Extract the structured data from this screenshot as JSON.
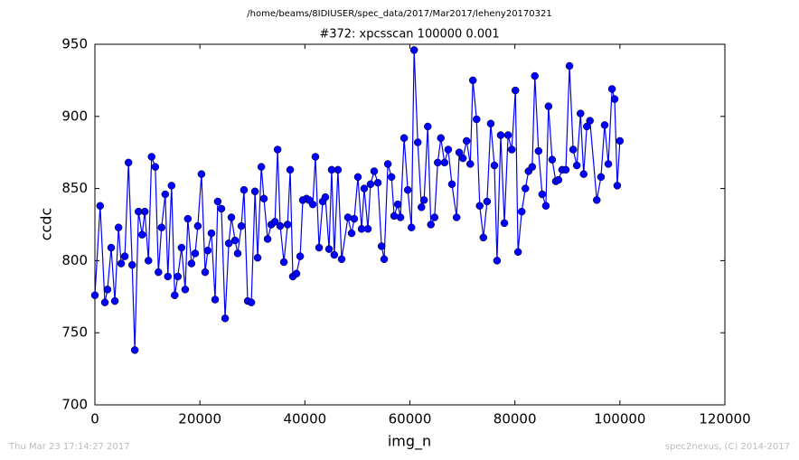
{
  "chart_data": {
    "type": "line",
    "suptitle": "/home/beams/8IDIUSER/spec_data/2017/Mar2017/leheny20170321",
    "title": "#372: xpcsscan 100000 0.001",
    "xlabel": "img_n",
    "ylabel": "ccdc",
    "timestamp": "Thu Mar 23 17:14:27 2017",
    "credit": "spec2nexus, (C) 2014-2017",
    "xlim": [
      0,
      120000
    ],
    "xticks": [
      0,
      20000,
      40000,
      60000,
      80000,
      100000,
      120000
    ],
    "ylim": [
      700,
      950
    ],
    "yticks": [
      700,
      750,
      800,
      850,
      900,
      950
    ],
    "grid": false,
    "series": [
      {
        "color": "#0000ff",
        "x": [
          0,
          1000,
          1900,
          2400,
          3100,
          3800,
          4500,
          5000,
          5700,
          6400,
          7100,
          7600,
          8300,
          9000,
          9500,
          10200,
          10800,
          11500,
          12100,
          12700,
          13400,
          13900,
          14600,
          15200,
          15800,
          16500,
          17200,
          17700,
          18400,
          19100,
          19600,
          20300,
          21000,
          21500,
          22200,
          22900,
          23400,
          24100,
          24800,
          25500,
          26000,
          26700,
          27200,
          27900,
          28400,
          29100,
          29800,
          30500,
          31000,
          31700,
          32200,
          32900,
          33600,
          34300,
          34800,
          35300,
          36000,
          36700,
          37200,
          37700,
          38400,
          39100,
          39600,
          40300,
          40800,
          41500,
          42000,
          42700,
          43400,
          43900,
          44600,
          45100,
          45600,
          46300,
          47000,
          48200,
          48900,
          49400,
          50100,
          50800,
          51300,
          52000,
          52500,
          53200,
          53900,
          54600,
          55100,
          55800,
          56500,
          57000,
          57700,
          58200,
          58900,
          59600,
          60300,
          60800,
          61500,
          62200,
          62700,
          63400,
          64000,
          64700,
          65300,
          65900,
          66600,
          67300,
          68000,
          68900,
          69400,
          70100,
          70800,
          71500,
          72000,
          72700,
          73300,
          74000,
          74700,
          75400,
          76100,
          76600,
          77300,
          78000,
          78700,
          79400,
          80100,
          80600,
          81300,
          82000,
          82600,
          83300,
          83800,
          84500,
          85200,
          85900,
          86400,
          87100,
          87800,
          88300,
          89000,
          89700,
          90400,
          91100,
          91800,
          92500,
          93100,
          93700,
          94300,
          95600,
          96400,
          97100,
          97800,
          98500,
          99000,
          99500,
          100000
        ],
        "values": [
          776,
          838,
          771,
          780,
          809,
          772,
          823,
          798,
          803,
          868,
          797,
          738,
          834,
          818,
          834,
          800,
          872,
          865,
          792,
          823,
          846,
          789,
          852,
          776,
          789,
          809,
          780,
          829,
          798,
          805,
          824,
          860,
          792,
          807,
          819,
          773,
          841,
          836,
          760,
          812,
          830,
          814,
          805,
          824,
          849,
          772,
          771,
          848,
          802,
          865,
          843,
          815,
          825,
          827,
          877,
          824,
          799,
          825,
          863,
          789,
          791,
          803,
          842,
          843,
          842,
          839,
          872,
          809,
          841,
          844,
          808,
          863,
          804,
          863,
          801,
          830,
          819,
          829,
          858,
          822,
          850,
          822,
          853,
          862,
          854,
          810,
          801,
          867,
          858,
          831,
          839,
          830,
          885,
          849,
          823,
          946,
          882,
          837,
          842,
          893,
          825,
          830,
          868,
          885,
          868,
          877,
          853,
          830,
          875,
          871,
          883,
          867,
          925,
          898,
          838,
          816,
          841,
          895,
          866,
          800,
          887,
          826,
          887,
          877,
          918,
          806,
          834,
          850,
          862,
          865,
          928,
          876,
          846,
          838,
          907,
          870,
          855,
          856,
          863,
          863,
          935,
          877,
          866,
          902,
          860,
          893,
          897,
          842,
          858,
          894,
          867,
          919,
          912,
          852,
          883
        ]
      }
    ]
  }
}
